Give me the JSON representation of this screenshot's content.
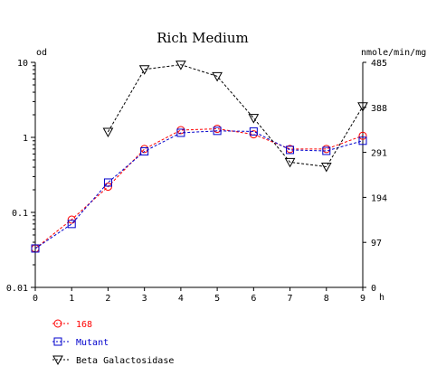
{
  "chart_data": {
    "type": "line",
    "title": "Rich Medium",
    "x": [
      0,
      1,
      2,
      3,
      4,
      5,
      6,
      7,
      8,
      9
    ],
    "xlabel": "h",
    "xlim": [
      0,
      9
    ],
    "xticks": [
      "0",
      "1",
      "2",
      "3",
      "4",
      "5",
      "6",
      "7",
      "8",
      "9"
    ],
    "y_left": {
      "label": "od",
      "scale": "log",
      "lim": [
        0.01,
        10
      ],
      "ticks": [
        {
          "value": 0.01,
          "label": "0.01"
        },
        {
          "value": 0.1,
          "label": "0.1"
        },
        {
          "value": 1,
          "label": "1"
        },
        {
          "value": 10,
          "label": "10"
        }
      ]
    },
    "y_right": {
      "label": "nmole/min/mg",
      "scale": "linear",
      "lim": [
        0,
        485
      ],
      "ticks": [
        {
          "value": 0,
          "label": "0"
        },
        {
          "value": 97,
          "label": "97"
        },
        {
          "value": 194,
          "label": "194"
        },
        {
          "value": 291,
          "label": "291"
        },
        {
          "value": 388,
          "label": "388"
        },
        {
          "value": 485,
          "label": "485"
        }
      ]
    },
    "grid": false,
    "legend_position": "bottom-left",
    "series": [
      {
        "name": "168",
        "axis": "left",
        "color": "#ff0000",
        "marker": "circle",
        "values": [
          0.033,
          0.08,
          0.22,
          0.7,
          1.25,
          1.3,
          1.1,
          0.7,
          0.7,
          1.05
        ]
      },
      {
        "name": "Mutant",
        "axis": "left",
        "color": "#0000cc",
        "marker": "square",
        "values": [
          0.033,
          0.07,
          0.25,
          0.65,
          1.15,
          1.22,
          1.2,
          0.68,
          0.66,
          0.9
        ]
      },
      {
        "name": "Beta Galactosidase",
        "axis": "right",
        "color": "#000000",
        "marker": "triangle-down",
        "values": [
          null,
          null,
          335,
          470,
          480,
          455,
          365,
          270,
          260,
          390
        ]
      }
    ]
  }
}
